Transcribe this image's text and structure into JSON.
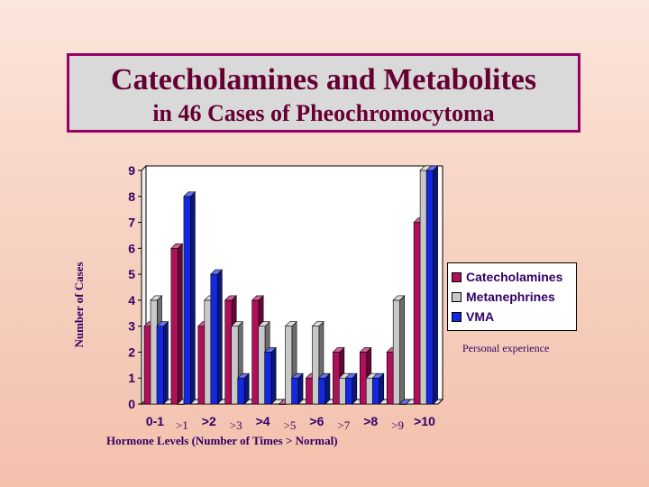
{
  "title": {
    "line1": "Catecholamines and Metabolites",
    "line2": "in 46 Cases of Pheochromocytoma"
  },
  "note": "Personal experience",
  "colors": {
    "catecholamines": "#b0105a",
    "metanephrines": "#c8c8c8",
    "vma": "#1428e0",
    "axis_text": "#330066"
  },
  "chart_data": {
    "type": "bar",
    "categories": [
      "0-1",
      ">1",
      ">2",
      ">3",
      ">4",
      ">5",
      ">6",
      ">7",
      ">8",
      ">9",
      ">10"
    ],
    "series": [
      {
        "name": "Catecholamines",
        "values": [
          3,
          6,
          3,
          4,
          4,
          0,
          1,
          2,
          2,
          2,
          7
        ]
      },
      {
        "name": "Metanephrines",
        "values": [
          4,
          0,
          4,
          3,
          3,
          3,
          3,
          1,
          1,
          4,
          9
        ]
      },
      {
        "name": "VMA",
        "values": [
          3,
          8,
          5,
          1,
          2,
          1,
          1,
          1,
          1,
          0,
          9
        ]
      }
    ],
    "xlabel": "Hormone Levels (Number of Times > Normal)",
    "ylabel": "Number of Cases",
    "ylim": [
      0,
      9
    ],
    "yticks": [
      0,
      1,
      2,
      3,
      4,
      5,
      6,
      7,
      8,
      9
    ],
    "grid": false,
    "legend": "right",
    "style": "3d-bar"
  }
}
